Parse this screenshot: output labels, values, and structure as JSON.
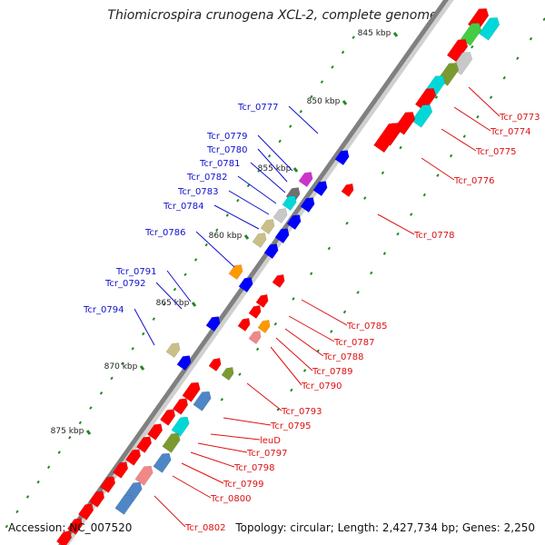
{
  "title": "Thiomicrospira crunogena XCL-2, complete genome",
  "footer": {
    "accession": "Accession: NC_007520",
    "topology": "Topology: circular; Length: 2,427,734 bp; Genes: 2,250"
  },
  "colors": {
    "backbone": "#808080",
    "plus_label": "#1010d0",
    "minus_label": "#dd1010",
    "tick_major": "#228822",
    "tick_minor": "#228822",
    "gene_red": "#ff0000",
    "gene_blue": "#0000ff",
    "gene_cyan": "#00d8d8",
    "gene_green": "#44cc44",
    "gene_olive": "#7a9a30",
    "gene_khaki": "#c8c088",
    "gene_gray": "#c8c8c8",
    "gene_pink": "#f08888",
    "gene_orange": "#ff9900",
    "gene_steel": "#4f86c6",
    "gene_darkgray": "#707070",
    "gene_magenta": "#cc33cc"
  },
  "scale_labels": [
    "845 kbp",
    "850 kbp",
    "855 kbp",
    "860 kbp",
    "865 kbp",
    "870 kbp",
    "875 kbp"
  ],
  "plus_gene_labels": [
    "Tcr_0777",
    "Tcr_0779",
    "Tcr_0780",
    "Tcr_0781",
    "Tcr_0782",
    "Tcr_0783",
    "Tcr_0784",
    "Tcr_0786",
    "Tcr_0791",
    "Tcr_0792",
    "Tcr_0794"
  ],
  "minus_gene_labels": [
    "Tcr_0773",
    "Tcr_0774",
    "Tcr_0775",
    "Tcr_0776",
    "Tcr_0778",
    "Tcr_0785",
    "Tcr_0787",
    "Tcr_0788",
    "Tcr_0789",
    "Tcr_0790",
    "Tcr_0793",
    "Tcr_0795",
    "leuD",
    "Tcr_0797",
    "Tcr_0798",
    "Tcr_0799",
    "Tcr_0800",
    "Tcr_0802"
  ]
}
